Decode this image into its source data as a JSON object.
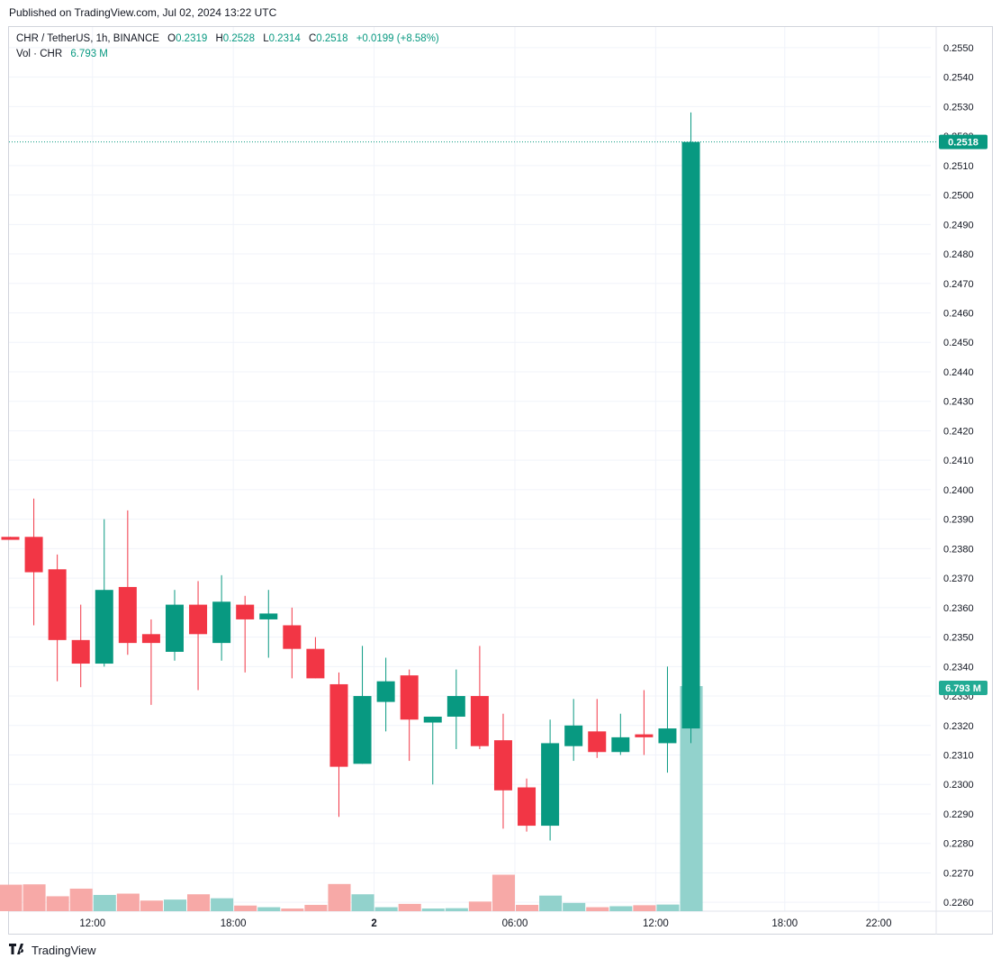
{
  "header": {
    "published": "Published on TradingView.com, Jul 02, 2024 13:22 UTC"
  },
  "legend": {
    "symbol": "CHR / TetherUS, 1h, BINANCE",
    "o_label": "O",
    "o_value": "0.2319",
    "h_label": "H",
    "h_value": "0.2528",
    "l_label": "L",
    "l_value": "0.2314",
    "c_label": "C",
    "c_value": "0.2518",
    "change": "+0.0199 (+8.58%)",
    "vol_label": "Vol · CHR",
    "vol_value": "6.793 M"
  },
  "price_badge": "0.2518",
  "volume_badge": "6.793 M",
  "footer": {
    "brand": "TradingView",
    "logo_icon": "tradingview-logo-icon"
  },
  "colors": {
    "up": "#089981",
    "down": "#f23645",
    "vol_up": "#92d2cc",
    "vol_down": "#f7a9a7",
    "grid": "#f0f3fa",
    "axis_text": "#131722"
  },
  "chart_data": {
    "type": "candlestick",
    "interval": "1h",
    "y_axis": {
      "ticks": [
        "0.2550",
        "0.2540",
        "0.2530",
        "0.2520",
        "0.2510",
        "0.2500",
        "0.2490",
        "0.2480",
        "0.2470",
        "0.2460",
        "0.2450",
        "0.2440",
        "0.2430",
        "0.2420",
        "0.2410",
        "0.2400",
        "0.2390",
        "0.2380",
        "0.2370",
        "0.2360",
        "0.2350",
        "0.2340",
        "0.2330",
        "0.2320",
        "0.2310",
        "0.2300",
        "0.2290",
        "0.2280",
        "0.2270",
        "0.2260"
      ],
      "range": [
        0.2257,
        0.2557
      ]
    },
    "x_axis": {
      "ticks": [
        {
          "label": "12:00",
          "index": 3.5
        },
        {
          "label": "18:00",
          "index": 9.5
        },
        {
          "label": "2",
          "index": 15.5
        },
        {
          "label": "06:00",
          "index": 21.5
        },
        {
          "label": "12:00",
          "index": 27.5
        },
        {
          "label": "18:00",
          "index": 33
        },
        {
          "label": "22:00",
          "index": 37
        }
      ]
    },
    "candles": [
      {
        "o": 0.2384,
        "h": 0.2384,
        "l": 0.2383,
        "c": 0.2383,
        "vol": 0.8
      },
      {
        "o": 0.2384,
        "h": 0.2397,
        "l": 0.2354,
        "c": 0.2372,
        "vol": 0.81
      },
      {
        "o": 0.2373,
        "h": 0.2378,
        "l": 0.2335,
        "c": 0.2349,
        "vol": 0.45
      },
      {
        "o": 0.2349,
        "h": 0.2361,
        "l": 0.2333,
        "c": 0.2341,
        "vol": 0.68
      },
      {
        "o": 0.2341,
        "h": 0.239,
        "l": 0.234,
        "c": 0.2366,
        "vol": 0.49
      },
      {
        "o": 0.2367,
        "h": 0.2393,
        "l": 0.2344,
        "c": 0.2348,
        "vol": 0.53
      },
      {
        "o": 0.2351,
        "h": 0.2356,
        "l": 0.2327,
        "c": 0.2348,
        "vol": 0.32
      },
      {
        "o": 0.2345,
        "h": 0.2366,
        "l": 0.2342,
        "c": 0.2361,
        "vol": 0.35
      },
      {
        "o": 0.2361,
        "h": 0.2369,
        "l": 0.2332,
        "c": 0.2351,
        "vol": 0.51
      },
      {
        "o": 0.2348,
        "h": 0.2371,
        "l": 0.2342,
        "c": 0.2362,
        "vol": 0.39
      },
      {
        "o": 0.2361,
        "h": 0.2364,
        "l": 0.2338,
        "c": 0.2356,
        "vol": 0.17
      },
      {
        "o": 0.2356,
        "h": 0.2366,
        "l": 0.2343,
        "c": 0.2358,
        "vol": 0.12
      },
      {
        "o": 0.2354,
        "h": 0.236,
        "l": 0.2336,
        "c": 0.2346,
        "vol": 0.08
      },
      {
        "o": 0.2346,
        "h": 0.235,
        "l": 0.2336,
        "c": 0.2336,
        "vol": 0.19
      },
      {
        "o": 0.2334,
        "h": 0.2338,
        "l": 0.2289,
        "c": 0.2306,
        "vol": 0.82
      },
      {
        "o": 0.2307,
        "h": 0.2347,
        "l": 0.2307,
        "c": 0.233,
        "vol": 0.51
      },
      {
        "o": 0.2328,
        "h": 0.2343,
        "l": 0.2318,
        "c": 0.2335,
        "vol": 0.12
      },
      {
        "o": 0.2337,
        "h": 0.2339,
        "l": 0.2308,
        "c": 0.2322,
        "vol": 0.22
      },
      {
        "o": 0.2321,
        "h": 0.2323,
        "l": 0.23,
        "c": 0.2323,
        "vol": 0.08
      },
      {
        "o": 0.2323,
        "h": 0.2339,
        "l": 0.2312,
        "c": 0.233,
        "vol": 0.09
      },
      {
        "o": 0.233,
        "h": 0.2347,
        "l": 0.2312,
        "c": 0.2313,
        "vol": 0.29
      },
      {
        "o": 0.2315,
        "h": 0.2324,
        "l": 0.2285,
        "c": 0.2298,
        "vol": 1.1
      },
      {
        "o": 0.2299,
        "h": 0.2302,
        "l": 0.2284,
        "c": 0.2286,
        "vol": 0.19
      },
      {
        "o": 0.2286,
        "h": 0.2322,
        "l": 0.2281,
        "c": 0.2314,
        "vol": 0.47
      },
      {
        "o": 0.2313,
        "h": 0.2329,
        "l": 0.2308,
        "c": 0.232,
        "vol": 0.25
      },
      {
        "o": 0.2318,
        "h": 0.2329,
        "l": 0.2309,
        "c": 0.2311,
        "vol": 0.12
      },
      {
        "o": 0.2311,
        "h": 0.2324,
        "l": 0.231,
        "c": 0.2316,
        "vol": 0.15
      },
      {
        "o": 0.2317,
        "h": 0.2332,
        "l": 0.231,
        "c": 0.2316,
        "vol": 0.18
      },
      {
        "o": 0.2314,
        "h": 0.234,
        "l": 0.2304,
        "c": 0.2319,
        "vol": 0.2
      },
      {
        "o": 0.2319,
        "h": 0.2528,
        "l": 0.2314,
        "c": 0.2518,
        "vol": 6.793
      }
    ]
  }
}
